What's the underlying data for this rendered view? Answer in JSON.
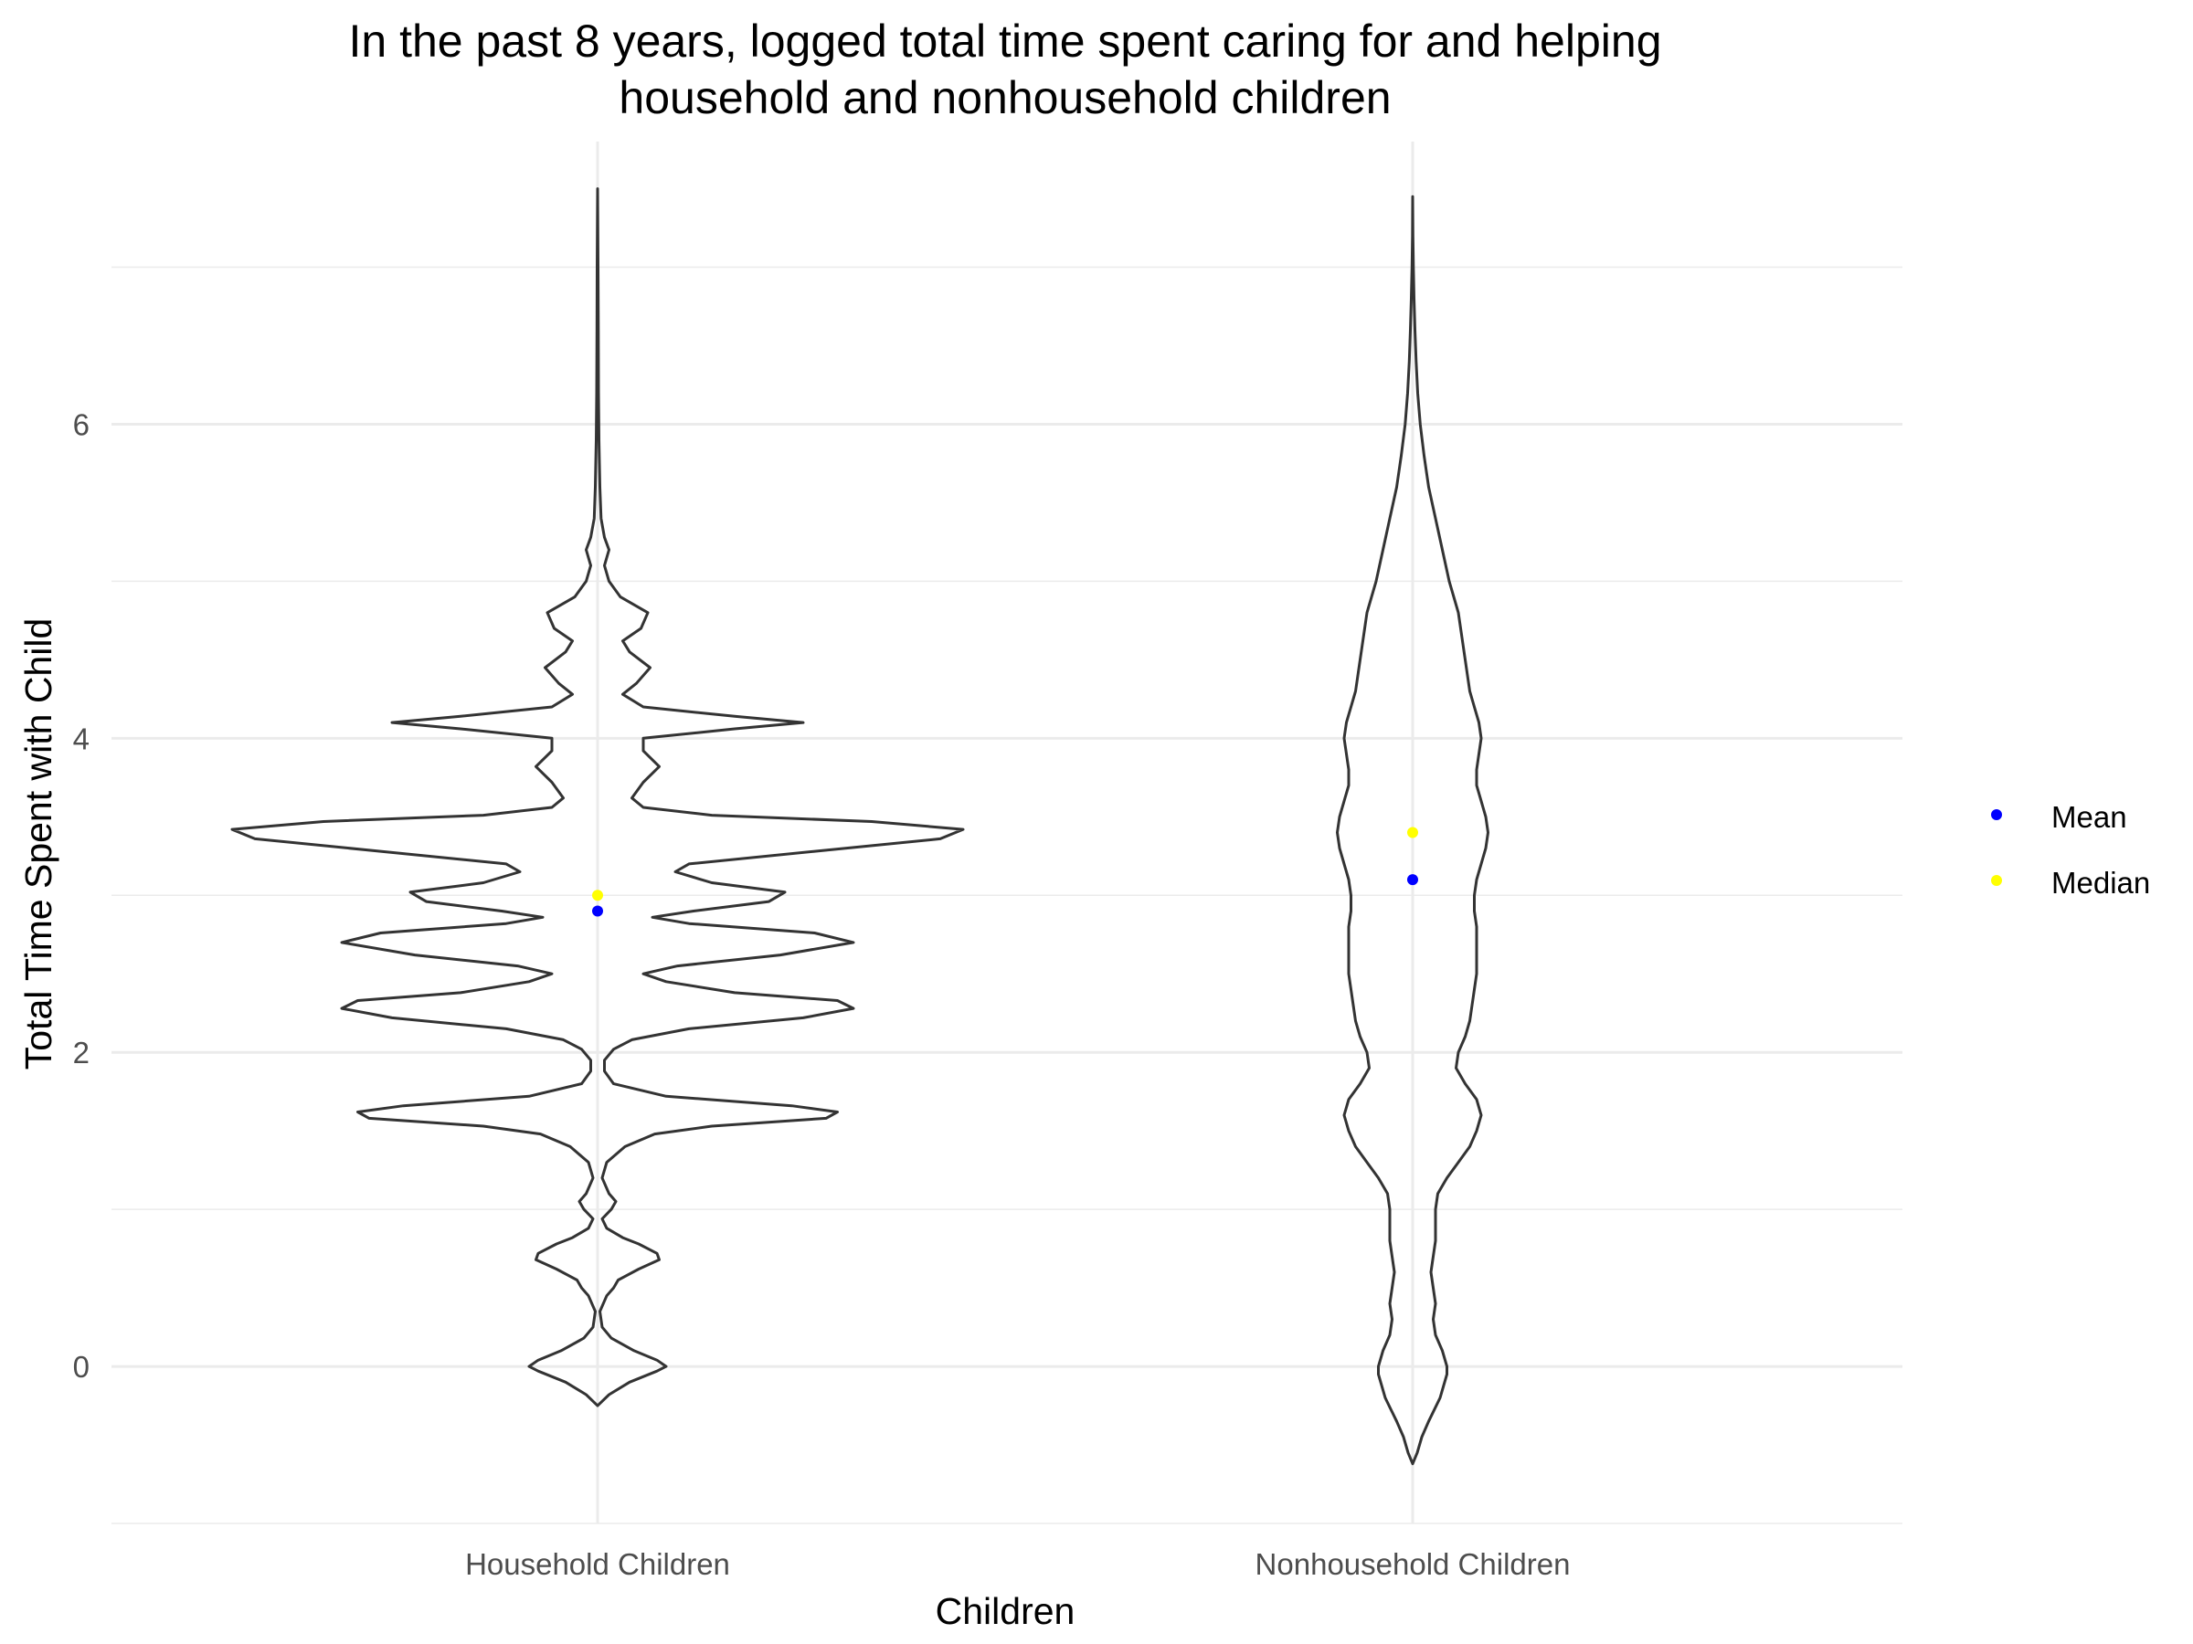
{
  "chart_data": {
    "type": "violin",
    "title": [
      "In the past 8 years, logged total time spent caring for and helping",
      "household and nonhousehold children"
    ],
    "xlabel": "Children",
    "ylabel": "Total Time Spent with Child",
    "categories": [
      "Household Children",
      "Nonhousehold Children"
    ],
    "ylim": [
      -1,
      7.8
    ],
    "y_ticks": [
      0,
      2,
      4,
      6
    ],
    "y_minor": [
      -1,
      1,
      3,
      5,
      7
    ],
    "grid": true,
    "legend": {
      "position": "right",
      "entries": [
        {
          "label": "Mean",
          "color": "#0000ff"
        },
        {
          "label": "Median",
          "color": "#ffff00"
        }
      ]
    },
    "series": [
      {
        "category": "Household Children",
        "mean": 2.9,
        "median": 3.0,
        "y_range": [
          -0.25,
          7.5
        ],
        "density_profile": [
          [
            -0.25,
            0.0
          ],
          [
            -0.18,
            0.05
          ],
          [
            -0.1,
            0.14
          ],
          [
            -0.03,
            0.26
          ],
          [
            0.0,
            0.3
          ],
          [
            0.04,
            0.26
          ],
          [
            0.1,
            0.16
          ],
          [
            0.18,
            0.06
          ],
          [
            0.25,
            0.02
          ],
          [
            0.35,
            0.01
          ],
          [
            0.45,
            0.04
          ],
          [
            0.5,
            0.07
          ],
          [
            0.55,
            0.09
          ],
          [
            0.62,
            0.18
          ],
          [
            0.68,
            0.27
          ],
          [
            0.72,
            0.26
          ],
          [
            0.78,
            0.18
          ],
          [
            0.82,
            0.11
          ],
          [
            0.88,
            0.04
          ],
          [
            0.94,
            0.02
          ],
          [
            1.0,
            0.06
          ],
          [
            1.05,
            0.08
          ],
          [
            1.1,
            0.05
          ],
          [
            1.2,
            0.02
          ],
          [
            1.3,
            0.04
          ],
          [
            1.4,
            0.12
          ],
          [
            1.48,
            0.25
          ],
          [
            1.53,
            0.5
          ],
          [
            1.58,
            1.0
          ],
          [
            1.62,
            1.05
          ],
          [
            1.66,
            0.85
          ],
          [
            1.72,
            0.3
          ],
          [
            1.8,
            0.07
          ],
          [
            1.88,
            0.03
          ],
          [
            1.95,
            0.03
          ],
          [
            2.02,
            0.07
          ],
          [
            2.08,
            0.15
          ],
          [
            2.15,
            0.4
          ],
          [
            2.22,
            0.9
          ],
          [
            2.28,
            1.12
          ],
          [
            2.33,
            1.05
          ],
          [
            2.38,
            0.6
          ],
          [
            2.45,
            0.3
          ],
          [
            2.5,
            0.2
          ],
          [
            2.55,
            0.35
          ],
          [
            2.62,
            0.8
          ],
          [
            2.7,
            1.12
          ],
          [
            2.76,
            0.95
          ],
          [
            2.82,
            0.4
          ],
          [
            2.86,
            0.24
          ],
          [
            2.9,
            0.42
          ],
          [
            2.96,
            0.75
          ],
          [
            3.02,
            0.82
          ],
          [
            3.08,
            0.5
          ],
          [
            3.15,
            0.34
          ],
          [
            3.2,
            0.4
          ],
          [
            3.28,
            0.95
          ],
          [
            3.36,
            1.5
          ],
          [
            3.42,
            1.6
          ],
          [
            3.47,
            1.2
          ],
          [
            3.51,
            0.5
          ],
          [
            3.56,
            0.2
          ],
          [
            3.62,
            0.15
          ],
          [
            3.72,
            0.2
          ],
          [
            3.82,
            0.27
          ],
          [
            3.92,
            0.2
          ],
          [
            4.0,
            0.2
          ],
          [
            4.06,
            0.6
          ],
          [
            4.1,
            0.9
          ],
          [
            4.14,
            0.6
          ],
          [
            4.2,
            0.2
          ],
          [
            4.28,
            0.11
          ],
          [
            4.35,
            0.17
          ],
          [
            4.45,
            0.23
          ],
          [
            4.55,
            0.14
          ],
          [
            4.62,
            0.11
          ],
          [
            4.7,
            0.19
          ],
          [
            4.8,
            0.22
          ],
          [
            4.9,
            0.1
          ],
          [
            5.0,
            0.05
          ],
          [
            5.1,
            0.03
          ],
          [
            5.2,
            0.05
          ],
          [
            5.28,
            0.03
          ],
          [
            5.4,
            0.015
          ],
          [
            5.6,
            0.01
          ],
          [
            5.9,
            0.006
          ],
          [
            6.2,
            0.004
          ],
          [
            6.6,
            0.003
          ],
          [
            7.0,
            0.002
          ],
          [
            7.5,
            0.0
          ]
        ]
      },
      {
        "category": "Nonhousehold Children",
        "mean": 3.1,
        "median": 3.4,
        "y_range": [
          -0.62,
          7.45
        ],
        "density_profile": [
          [
            -0.62,
            0.0
          ],
          [
            -0.55,
            0.02
          ],
          [
            -0.45,
            0.04
          ],
          [
            -0.35,
            0.07
          ],
          [
            -0.2,
            0.12
          ],
          [
            -0.05,
            0.15
          ],
          [
            0.0,
            0.15
          ],
          [
            0.1,
            0.13
          ],
          [
            0.2,
            0.1
          ],
          [
            0.3,
            0.09
          ],
          [
            0.4,
            0.1
          ],
          [
            0.5,
            0.09
          ],
          [
            0.6,
            0.08
          ],
          [
            0.7,
            0.09
          ],
          [
            0.8,
            0.1
          ],
          [
            0.9,
            0.1
          ],
          [
            1.0,
            0.1
          ],
          [
            1.1,
            0.11
          ],
          [
            1.2,
            0.15
          ],
          [
            1.3,
            0.2
          ],
          [
            1.4,
            0.25
          ],
          [
            1.5,
            0.28
          ],
          [
            1.6,
            0.3
          ],
          [
            1.7,
            0.28
          ],
          [
            1.8,
            0.23
          ],
          [
            1.9,
            0.19
          ],
          [
            2.0,
            0.2
          ],
          [
            2.1,
            0.23
          ],
          [
            2.2,
            0.25
          ],
          [
            2.3,
            0.26
          ],
          [
            2.4,
            0.27
          ],
          [
            2.5,
            0.28
          ],
          [
            2.6,
            0.28
          ],
          [
            2.7,
            0.28
          ],
          [
            2.8,
            0.28
          ],
          [
            2.9,
            0.27
          ],
          [
            3.0,
            0.27
          ],
          [
            3.1,
            0.28
          ],
          [
            3.2,
            0.3
          ],
          [
            3.3,
            0.32
          ],
          [
            3.4,
            0.33
          ],
          [
            3.5,
            0.32
          ],
          [
            3.6,
            0.3
          ],
          [
            3.7,
            0.28
          ],
          [
            3.8,
            0.28
          ],
          [
            3.9,
            0.29
          ],
          [
            4.0,
            0.3
          ],
          [
            4.1,
            0.29
          ],
          [
            4.2,
            0.27
          ],
          [
            4.3,
            0.25
          ],
          [
            4.4,
            0.24
          ],
          [
            4.5,
            0.23
          ],
          [
            4.6,
            0.22
          ],
          [
            4.7,
            0.21
          ],
          [
            4.8,
            0.2
          ],
          [
            4.9,
            0.18
          ],
          [
            5.0,
            0.16
          ],
          [
            5.2,
            0.13
          ],
          [
            5.4,
            0.1
          ],
          [
            5.6,
            0.07
          ],
          [
            5.8,
            0.05
          ],
          [
            6.0,
            0.033
          ],
          [
            6.2,
            0.022
          ],
          [
            6.4,
            0.015
          ],
          [
            6.6,
            0.01
          ],
          [
            6.8,
            0.006
          ],
          [
            7.0,
            0.003
          ],
          [
            7.2,
            0.001
          ],
          [
            7.45,
            0.0
          ]
        ]
      }
    ]
  }
}
